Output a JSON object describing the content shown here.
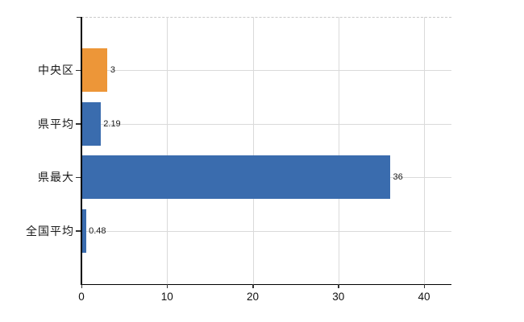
{
  "chart_data": {
    "type": "bar",
    "orientation": "horizontal",
    "title": "",
    "categories": [
      "中央区",
      "県平均",
      "県最大",
      "全国平均"
    ],
    "values": [
      3,
      2.19,
      36,
      0.48
    ],
    "value_labels": [
      "3",
      "2.19",
      "36",
      "0.48"
    ],
    "series_colors": [
      "#ed9638",
      "#3a6cae",
      "#3a6cae",
      "#3a6cae"
    ],
    "highlight_color": "#ed9638",
    "base_color": "#3a6cae",
    "x_ticks": [
      0,
      10,
      20,
      30,
      40
    ],
    "x_tick_labels": [
      "0",
      "10",
      "20",
      "30",
      "40"
    ],
    "xlim": [
      0,
      43.2
    ],
    "ylabel": "",
    "xlabel": "",
    "grid": true,
    "legend": false,
    "background": "#ffffff",
    "axis_color": "#000000",
    "grid_color": "#dadada",
    "text_color": "#1a1a1a"
  }
}
